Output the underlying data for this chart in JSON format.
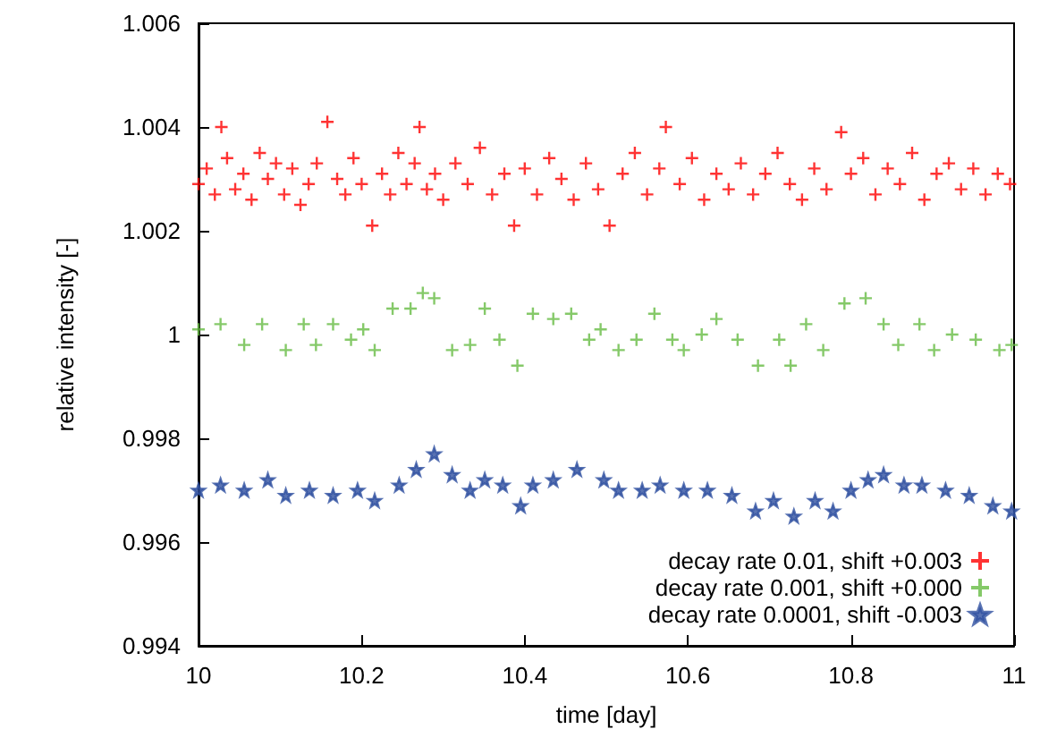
{
  "chart_data": {
    "type": "scatter",
    "xlabel": "time [day]",
    "ylabel": "relative intensity [-]",
    "xlim": [
      10,
      11
    ],
    "xticks": [
      10,
      10.2,
      10.4,
      10.6,
      10.8,
      11
    ],
    "ylim": [
      0.994,
      1.006
    ],
    "yticks": [
      0.994,
      0.996,
      0.998,
      1,
      1.002,
      1.004,
      1.006
    ],
    "grid": false,
    "legend": "bottom right",
    "series": [
      {
        "name": "decay rate 0.01, shift +0.003",
        "color": "#ff0000",
        "marker": "cross",
        "x": [
          10.0,
          10.01,
          10.02,
          10.028,
          10.035,
          10.045,
          10.055,
          10.065,
          10.075,
          10.085,
          10.095,
          10.105,
          10.115,
          10.125,
          10.135,
          10.145,
          10.158,
          10.17,
          10.18,
          10.19,
          10.2,
          10.213,
          10.225,
          10.235,
          10.245,
          10.255,
          10.265,
          10.271,
          10.28,
          10.29,
          10.3,
          10.315,
          10.33,
          10.345,
          10.36,
          10.375,
          10.387,
          10.4,
          10.415,
          10.43,
          10.445,
          10.46,
          10.475,
          10.49,
          10.504,
          10.52,
          10.535,
          10.55,
          10.565,
          10.573,
          10.59,
          10.605,
          10.62,
          10.635,
          10.65,
          10.665,
          10.68,
          10.695,
          10.71,
          10.725,
          10.74,
          10.755,
          10.77,
          10.788,
          10.8,
          10.815,
          10.83,
          10.845,
          10.86,
          10.875,
          10.89,
          10.905,
          10.92,
          10.935,
          10.95,
          10.965,
          10.98,
          10.995
        ],
        "values": [
          1.0029,
          1.0032,
          1.0027,
          1.004,
          1.0034,
          1.0028,
          1.0031,
          1.0026,
          1.0035,
          1.003,
          1.0033,
          1.0027,
          1.0032,
          1.0025,
          1.0029,
          1.0033,
          1.0041,
          1.003,
          1.0027,
          1.0034,
          1.0029,
          1.0021,
          1.0031,
          1.0027,
          1.0035,
          1.0029,
          1.0033,
          1.004,
          1.0028,
          1.0031,
          1.0026,
          1.0033,
          1.0029,
          1.0036,
          1.0027,
          1.0031,
          1.0021,
          1.0032,
          1.0027,
          1.0034,
          1.003,
          1.0026,
          1.0033,
          1.0028,
          1.0021,
          1.0031,
          1.0035,
          1.0027,
          1.0032,
          1.004,
          1.0029,
          1.0034,
          1.0026,
          1.0031,
          1.0028,
          1.0033,
          1.0027,
          1.0031,
          1.0035,
          1.0029,
          1.0026,
          1.0032,
          1.0028,
          1.0039,
          1.0031,
          1.0034,
          1.0027,
          1.0032,
          1.0029,
          1.0035,
          1.0026,
          1.0031,
          1.0033,
          1.0028,
          1.0032,
          1.0027,
          1.0031,
          1.0029
        ]
      },
      {
        "name": "decay rate 0.001, shift +0.000",
        "color": "#66bb44",
        "marker": "cross",
        "x": [
          10.0,
          10.027,
          10.056,
          10.078,
          10.107,
          10.129,
          10.144,
          10.165,
          10.187,
          10.202,
          10.216,
          10.238,
          10.26,
          10.275,
          10.289,
          10.311,
          10.333,
          10.351,
          10.369,
          10.391,
          10.41,
          10.435,
          10.457,
          10.479,
          10.493,
          10.515,
          10.537,
          10.559,
          10.581,
          10.595,
          10.617,
          10.635,
          10.661,
          10.686,
          10.712,
          10.726,
          10.745,
          10.766,
          10.792,
          10.818,
          10.84,
          10.858,
          10.884,
          10.902,
          10.924,
          10.953,
          10.982,
          10.997
        ],
        "values": [
          1.0001,
          1.0002,
          0.9998,
          1.0002,
          0.9997,
          1.0002,
          0.9998,
          1.0002,
          0.9999,
          1.0001,
          0.9997,
          1.0005,
          1.0005,
          1.0008,
          1.0007,
          0.9997,
          0.9998,
          1.0005,
          0.9999,
          0.9994,
          1.0004,
          1.0003,
          1.0004,
          0.9999,
          1.0001,
          0.9997,
          0.9999,
          1.0004,
          0.9999,
          0.9997,
          1.0,
          1.0003,
          0.9999,
          0.9994,
          0.9999,
          0.9994,
          1.0002,
          0.9997,
          1.0006,
          1.0007,
          1.0002,
          0.9998,
          1.0002,
          0.9997,
          1.0,
          0.9999,
          0.9997,
          0.9998
        ]
      },
      {
        "name": "decay rate 0.0001, shift -0.003",
        "color": "#3050a0",
        "marker": "star",
        "x": [
          10.0,
          10.027,
          10.056,
          10.085,
          10.107,
          10.136,
          10.165,
          10.195,
          10.216,
          10.246,
          10.267,
          10.289,
          10.311,
          10.333,
          10.351,
          10.373,
          10.395,
          10.41,
          10.435,
          10.464,
          10.497,
          10.515,
          10.544,
          10.566,
          10.595,
          10.624,
          10.654,
          10.683,
          10.705,
          10.73,
          10.756,
          10.778,
          10.8,
          10.821,
          10.84,
          10.865,
          10.887,
          10.916,
          10.945,
          10.974,
          10.997
        ],
        "values": [
          0.997,
          0.9971,
          0.997,
          0.9972,
          0.9969,
          0.997,
          0.9969,
          0.997,
          0.9968,
          0.9971,
          0.9974,
          0.9977,
          0.9973,
          0.997,
          0.9972,
          0.9971,
          0.9967,
          0.9971,
          0.9972,
          0.9974,
          0.9972,
          0.997,
          0.997,
          0.9971,
          0.997,
          0.997,
          0.9969,
          0.9966,
          0.9968,
          0.9965,
          0.9968,
          0.9966,
          0.997,
          0.9972,
          0.9973,
          0.9971,
          0.9971,
          0.997,
          0.9969,
          0.9967,
          0.9966
        ]
      }
    ]
  }
}
